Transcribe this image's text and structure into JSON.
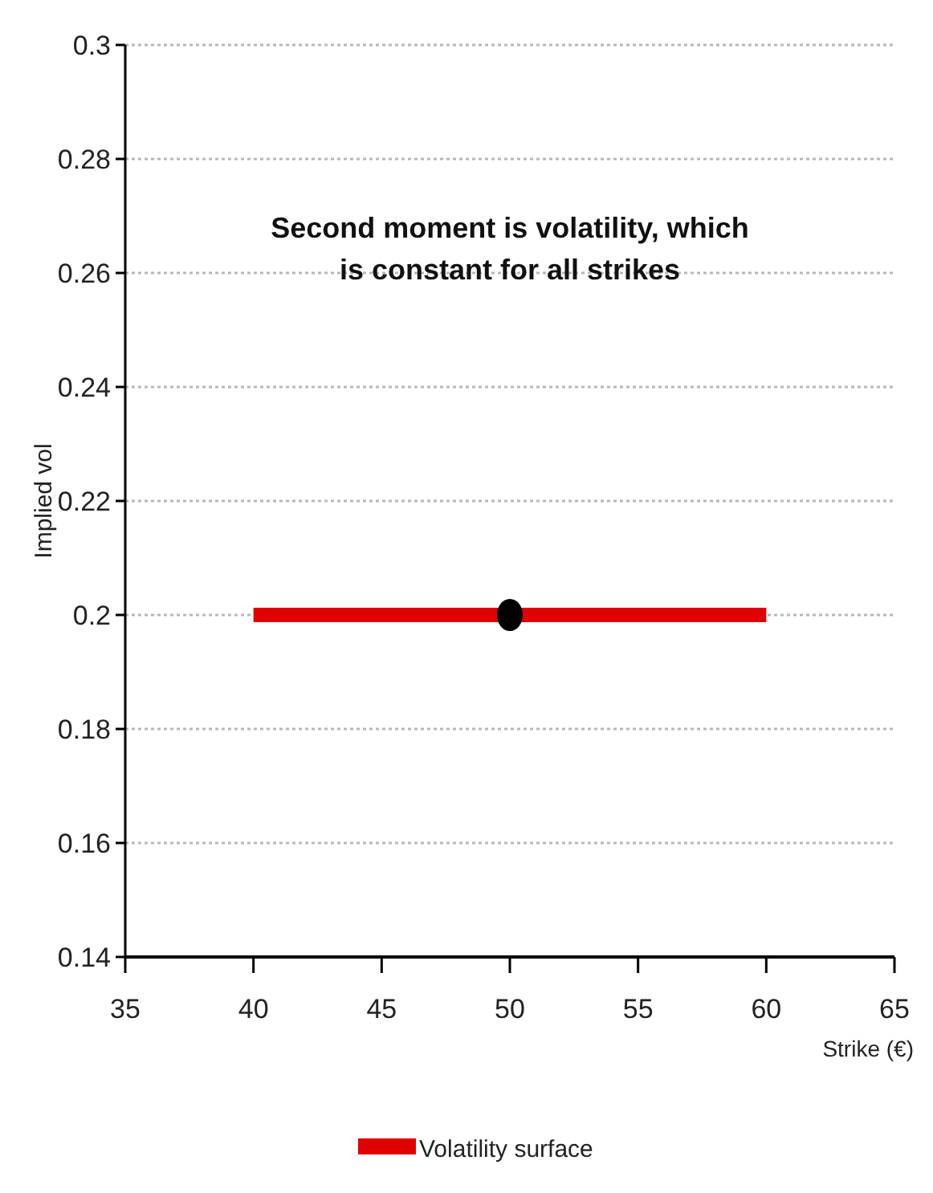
{
  "chart_data": {
    "type": "line",
    "xlabel": "Strike (€)",
    "ylabel": "Implied vol",
    "annotations": [
      "Second moment is volatility, which is constant for all strikes"
    ],
    "series": [
      {
        "name": "Volatility surface",
        "color": "#e00000",
        "x": [
          40,
          60
        ],
        "values": [
          0.2,
          0.2
        ]
      },
      {
        "type": "scatter",
        "color": "#000000",
        "x": [
          50
        ],
        "values": [
          0.2
        ],
        "marker": "circle"
      }
    ],
    "xlim": [
      35,
      65
    ],
    "xticks": [
      35,
      40,
      45,
      50,
      55,
      60,
      65
    ],
    "ylim": [
      0.14,
      0.3
    ],
    "yticks": [
      0.14,
      0.16,
      0.18,
      0.2,
      0.22,
      0.24,
      0.26,
      0.28,
      0.3
    ],
    "grid": "y",
    "legend": "bottom"
  }
}
